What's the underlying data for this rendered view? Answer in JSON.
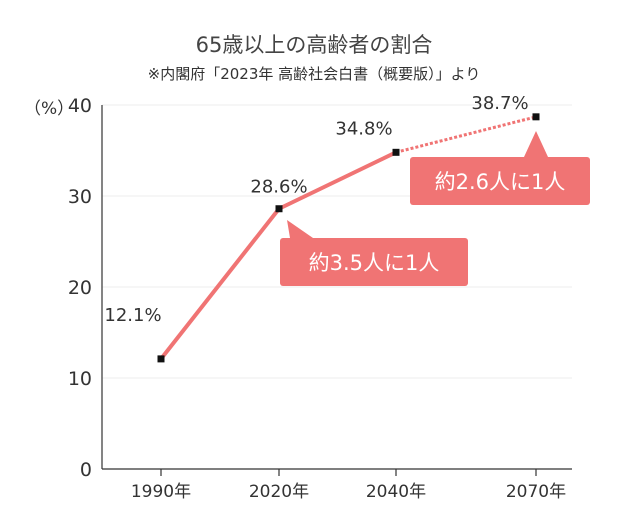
{
  "title": "65歳以上の高齢者の割合",
  "subtitle": "※内閣府「2023年 高齢社会白書（概要版）」より",
  "y_unit": "（%）",
  "colors": {
    "line": "#f07474",
    "marker": "#111111",
    "callout": "#f07474",
    "axis": "#333333",
    "grid": "#eeeeee"
  },
  "chart_data": {
    "type": "line",
    "title": "65歳以上の高齢者の割合",
    "xlabel": "",
    "ylabel": "（%）",
    "ylim": [
      0,
      40
    ],
    "yticks": [
      0,
      10,
      20,
      30,
      40
    ],
    "grid": true,
    "categories": [
      "1990年",
      "2020年",
      "2040年",
      "2070年"
    ],
    "values": [
      12.1,
      28.6,
      34.8,
      38.7
    ],
    "value_labels": [
      "12.1%",
      "28.6%",
      "34.8%",
      "38.7%"
    ],
    "projected_segment_from_index": 2,
    "annotations": [
      {
        "text": "約3.5人に1人",
        "points_to": "2020年"
      },
      {
        "text": "約2.6人に1人",
        "points_to": "2070年"
      }
    ]
  }
}
